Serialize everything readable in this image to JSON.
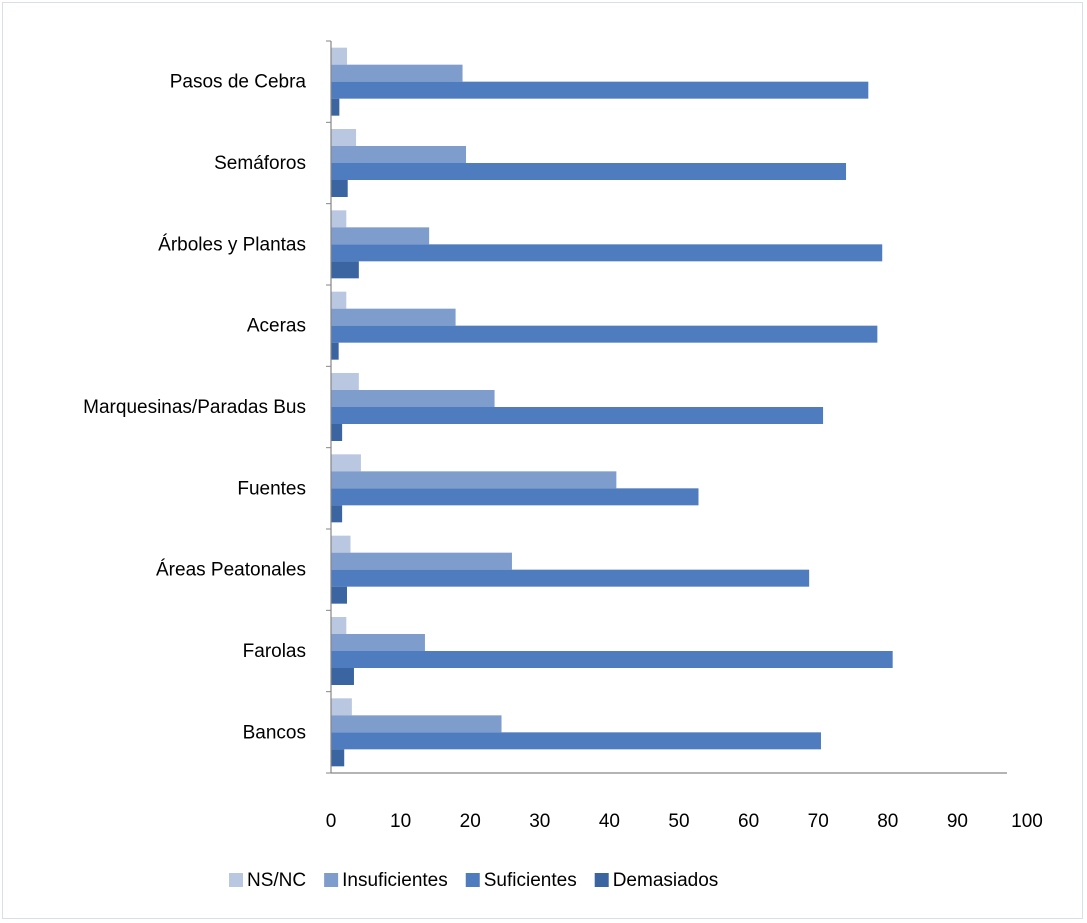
{
  "chart_data": {
    "type": "bar",
    "orientation": "horizontal",
    "title": "",
    "xlabel": "",
    "ylabel": "",
    "xlim": [
      0,
      100
    ],
    "xticks": [
      0,
      10,
      20,
      30,
      40,
      50,
      60,
      70,
      80,
      90,
      100
    ],
    "grid": false,
    "legend_position": "bottom",
    "categories": [
      "Pasos de Cebra",
      "Semáforos",
      "Árboles y Plantas",
      "Aceras",
      "Marquesinas/Paradas Bus",
      "Fuentes",
      "Áreas Peatonales",
      "Farolas",
      "Bancos"
    ],
    "series": [
      {
        "name": "NS/NC",
        "color": "#b9c7e1",
        "values": [
          2.3,
          3.6,
          2.2,
          2.2,
          4.0,
          4.3,
          2.8,
          2.2,
          3.0
        ]
      },
      {
        "name": "Insuficientes",
        "color": "#7f9dcc",
        "values": [
          18.9,
          19.4,
          14.1,
          17.9,
          23.5,
          41.0,
          26.0,
          13.5,
          24.5
        ]
      },
      {
        "name": "Suficientes",
        "color": "#4f7cbf",
        "values": [
          77.2,
          74.0,
          79.2,
          78.5,
          70.7,
          52.8,
          68.7,
          80.7,
          70.4
        ]
      },
      {
        "name": "Demasiados",
        "color": "#3a65a0",
        "values": [
          1.2,
          2.4,
          4.0,
          1.1,
          1.6,
          1.6,
          2.3,
          3.3,
          1.9
        ]
      }
    ]
  }
}
